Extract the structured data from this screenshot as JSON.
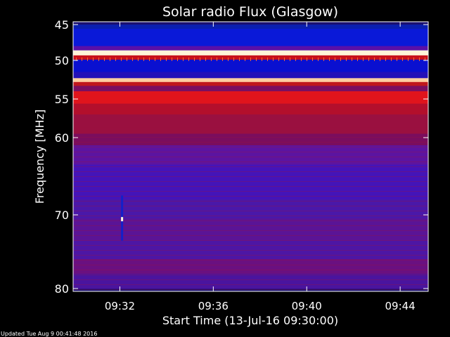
{
  "chart_data": {
    "type": "heatmap",
    "title": "Solar radio Flux (Glasgow)",
    "xlabel": "Start Time (13-Jul-16 09:30:00)",
    "ylabel": "Frequency [MHz]",
    "x_range_minutes": [
      0,
      15.2
    ],
    "y_range_mhz": [
      45,
      80
    ],
    "y_ticks": [
      {
        "value": 45,
        "label": "45"
      },
      {
        "value": 50,
        "label": "50"
      },
      {
        "value": 55,
        "label": "55"
      },
      {
        "value": 60,
        "label": "60"
      },
      {
        "value": 70,
        "label": "70"
      },
      {
        "value": 80,
        "label": "80"
      }
    ],
    "x_ticks": [
      {
        "value": 2,
        "label": "09:32"
      },
      {
        "value": 6,
        "label": "09:36"
      },
      {
        "value": 10,
        "label": "09:40"
      },
      {
        "value": 14,
        "label": "09:44"
      }
    ],
    "bands": [
      {
        "from": 45.0,
        "to": 45.6,
        "color": "#0a1fb0"
      },
      {
        "from": 45.6,
        "to": 48.0,
        "color": "#0a19d8"
      },
      {
        "from": 48.0,
        "to": 48.6,
        "color": "#5a10a8"
      },
      {
        "from": 48.6,
        "to": 49.3,
        "color": "#fff4d8"
      },
      {
        "from": 49.3,
        "to": 49.9,
        "color": "#c8101a"
      },
      {
        "from": 49.9,
        "to": 51.5,
        "color": "#0a10d0"
      },
      {
        "from": 51.5,
        "to": 52.3,
        "color": "#2410b8"
      },
      {
        "from": 52.3,
        "to": 52.8,
        "color": "#ffd0a0"
      },
      {
        "from": 52.8,
        "to": 53.3,
        "color": "#c0181c"
      },
      {
        "from": 53.3,
        "to": 54.0,
        "color": "#7a0f60"
      },
      {
        "from": 54.0,
        "to": 55.6,
        "color": "#e0141c"
      },
      {
        "from": 55.6,
        "to": 57.0,
        "color": "#b30f2c"
      },
      {
        "from": 57.0,
        "to": 59.5,
        "color": "#9a1040"
      },
      {
        "from": 59.5,
        "to": 61.0,
        "color": "#7a0d5e"
      },
      {
        "from": 61.0,
        "to": 63.5,
        "color": "#5c14a0"
      },
      {
        "from": 63.5,
        "to": 68.0,
        "color": "#4414b8"
      },
      {
        "from": 68.0,
        "to": 70.5,
        "color": "#4a18a8"
      },
      {
        "from": 70.5,
        "to": 73.5,
        "color": "#5a1496"
      },
      {
        "from": 73.5,
        "to": 76.0,
        "color": "#4d16a4"
      },
      {
        "from": 76.0,
        "to": 78.0,
        "color": "#6a1080"
      },
      {
        "from": 78.0,
        "to": 80.0,
        "color": "#4a149e"
      }
    ]
  },
  "footer": {
    "updated": "Updated Tue Aug  9 00:41:48 2016"
  }
}
